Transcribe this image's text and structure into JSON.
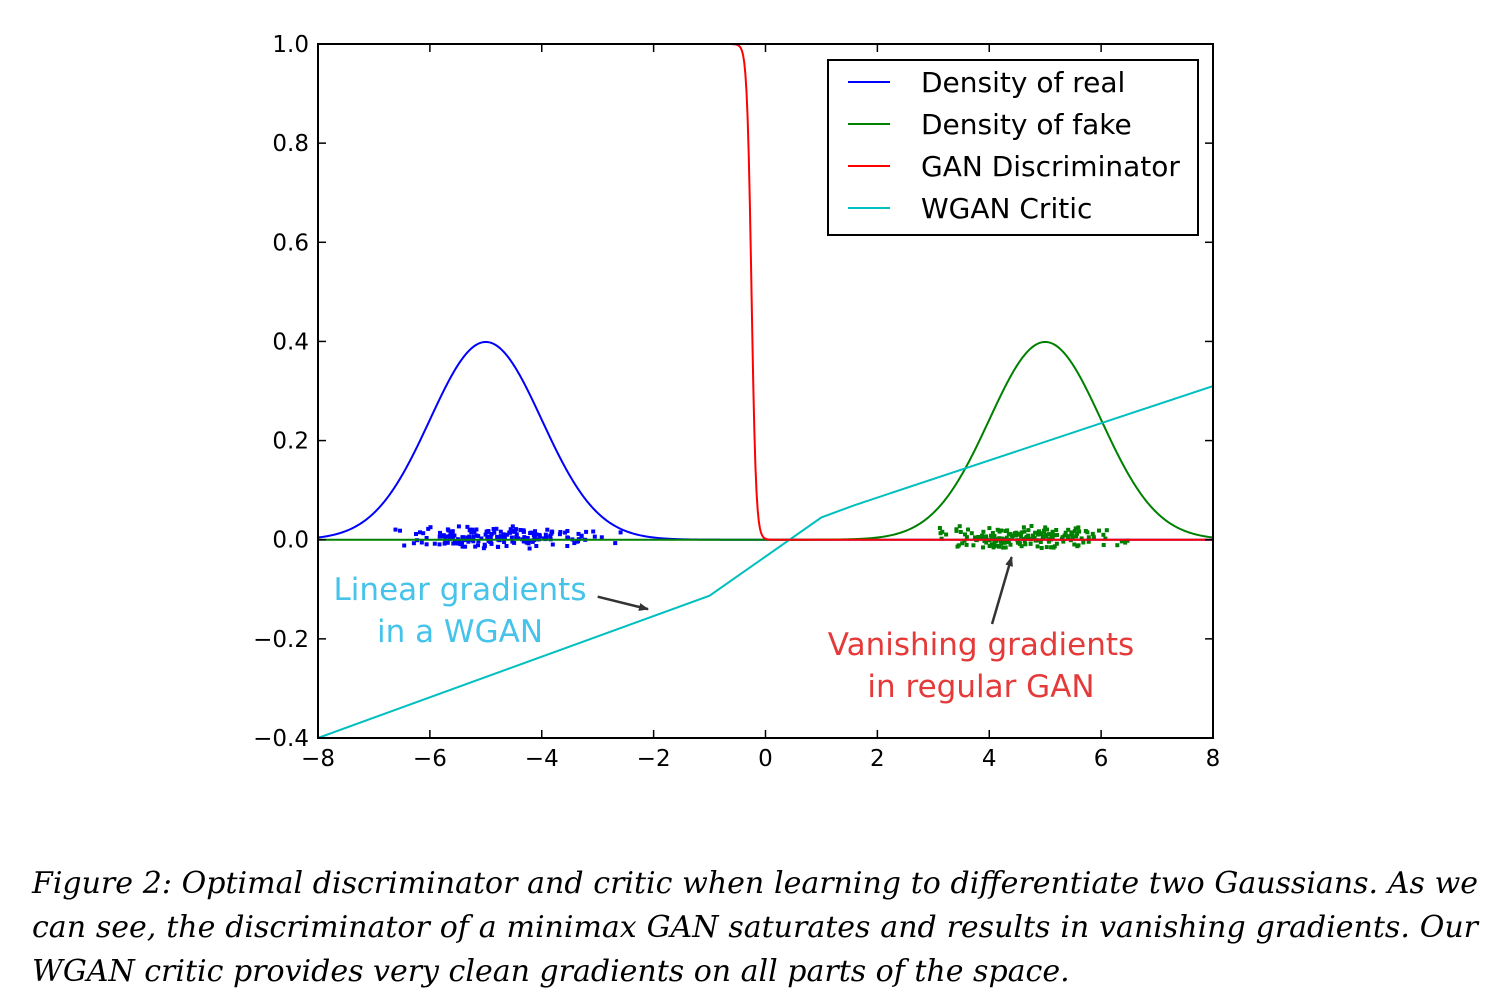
{
  "chart_data": {
    "type": "line",
    "title": "",
    "xlabel": "",
    "ylabel": "",
    "xlim": [
      -8,
      8
    ],
    "ylim": [
      -0.4,
      1.0
    ],
    "xticks": [
      -8,
      -6,
      -4,
      -2,
      0,
      2,
      4,
      6,
      8
    ],
    "yticks": [
      1.0,
      0.8,
      0.6,
      0.4,
      0.2,
      0.0,
      -0.2,
      -0.4
    ],
    "xtick_labels": [
      "−8",
      "−6",
      "−4",
      "−2",
      "0",
      "2",
      "4",
      "6",
      "8"
    ],
    "ytick_labels": [
      "1.0",
      "0.8",
      "0.6",
      "0.4",
      "0.2",
      "0.0",
      "−0.2",
      "−0.4"
    ],
    "grid": false,
    "legend_position": "top-right",
    "series": [
      {
        "name": "Density of real",
        "color": "#0000ff",
        "kind": "gaussian",
        "mean": -5,
        "std": 1
      },
      {
        "name": "Density of fake",
        "color": "#008000",
        "kind": "gaussian",
        "mean": 5,
        "std": 1
      },
      {
        "name": "GAN Discriminator",
        "color": "#ff0000",
        "kind": "sigmoid",
        "center": -0.25,
        "steepness": 25
      },
      {
        "name": "WGAN Critic",
        "color": "#00bfbf",
        "kind": "polyline",
        "x": [
          -8,
          -1,
          1,
          1.6,
          8
        ],
        "y": [
          -0.4,
          -0.113,
          0.045,
          0.07,
          0.31
        ]
      }
    ],
    "scatter": [
      {
        "name": "real samples",
        "color": "#0000ff",
        "x_range": [
          -7,
          -2.2
        ],
        "y_range": [
          -0.02,
          0.03
        ]
      },
      {
        "name": "fake samples",
        "color": "#008000",
        "x_range": [
          2.5,
          7
        ],
        "y_range": [
          -0.02,
          0.03
        ]
      }
    ],
    "annotations": [
      {
        "lines": [
          "Linear gradients",
          "in a WGAN"
        ],
        "color": "#45c3ea",
        "arrow_target": [
          -2.1,
          -0.14
        ],
        "arrow_source": [
          -3,
          -0.115
        ]
      },
      {
        "lines": [
          "Vanishing gradients",
          "in regular GAN"
        ],
        "color": "#e53a3a",
        "arrow_target": [
          4.4,
          -0.035
        ],
        "arrow_source": [
          4.05,
          -0.17
        ]
      }
    ]
  },
  "caption": {
    "text": "Figure 2: Optimal discriminator and critic when learning to differentiate two Gaussians. As we can see, the discriminator of a minimax GAN saturates and results in vanishing gradients. Our WGAN critic provides very clean gradients on all parts of the space."
  }
}
